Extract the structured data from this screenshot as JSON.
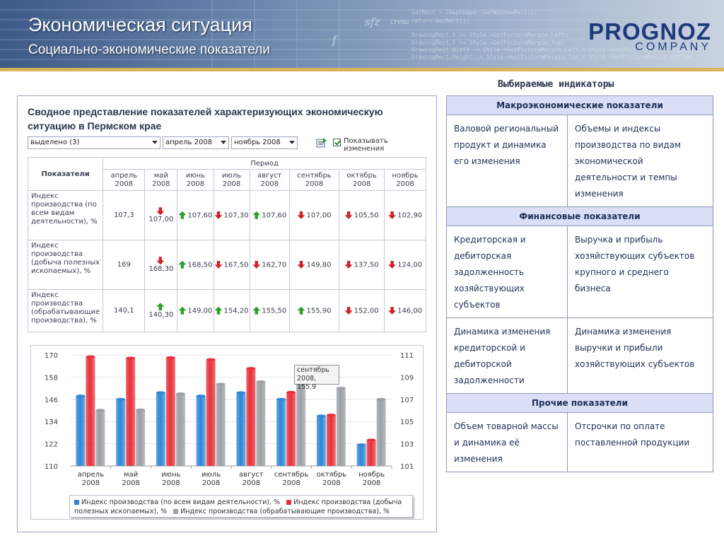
{
  "header": {
    "title": "Экономическая ситуация",
    "subtitle": "Социально-экономические показатели",
    "logo_main": "PROGNOZ",
    "logo_sub": "COMPANY",
    "bg_code": [
      "GetRect = CWapShape::GetWindowRect();",
      "return GetRect();",
      "DrawingRect.X += Style->GetPictureMargin.Left;",
      "DrawingRect.Y += Style->GetPictureMargin.Top;",
      "DrawingRect.Width -= Style->GetPictureMargin.Left + Style->GetPictureMargin.Right;",
      "DrawingRect.Height -= Style->GetPictureMargin.Top + Style->GetPictureMargin.Bottom;"
    ],
    "bg_notes": [
      "sfz",
      "cresc",
      "f"
    ]
  },
  "left": {
    "title": "Сводное представление показателей характеризующих экономическую ситуацию в Пермском крае",
    "filter_selected": "выделено (3)",
    "filter_from": "апрель 2008",
    "filter_to": "ноябрь 2008",
    "show_changes_label": "Показывать изменения",
    "table": {
      "indicator_header": "Показатели",
      "period_header": "Период",
      "months": [
        "апрель 2008",
        "май 2008",
        "июнь 2008",
        "июль 2008",
        "август 2008",
        "сентябрь 2008",
        "октябрь 2008",
        "ноябрь 2008"
      ],
      "rows": [
        {
          "label": "Индекс производства (по всем видам деятельности), %",
          "values": [
            "107,3",
            "107,00",
            "107,60",
            "107,30",
            "107,60",
            "107,00",
            "105,50",
            "102,90"
          ],
          "trend": [
            "",
            "down",
            "up",
            "down",
            "up",
            "down",
            "down",
            "down"
          ]
        },
        {
          "label": "Индекс производства (добыча полезных ископаемых), %",
          "values": [
            "169",
            "168,30",
            "168,50",
            "167,50",
            "162,70",
            "149,80",
            "137,50",
            "124,00"
          ],
          "trend": [
            "",
            "down",
            "up",
            "down",
            "down",
            "down",
            "down",
            "down"
          ]
        },
        {
          "label": "Индекс производства (обрабатывающие производства), %",
          "values": [
            "140,1",
            "140,30",
            "149,00",
            "154,20",
            "155,50",
            "155,90",
            "152,00",
            "146,00"
          ],
          "trend": [
            "",
            "up",
            "up",
            "up",
            "up",
            "up",
            "down",
            "down"
          ]
        }
      ]
    }
  },
  "chart_data": {
    "type": "bar",
    "categories": [
      "апрель 2008",
      "май 2008",
      "июнь 2008",
      "июль 2008",
      "август 2008",
      "сентябрь 2008",
      "октябрь 2008",
      "ноябрь 2008"
    ],
    "series": [
      {
        "name": "Индекс производства (по всем видам деятельности), %",
        "axis": "right",
        "color": "#2f86d6",
        "values": [
          107.3,
          107.0,
          107.6,
          107.3,
          107.6,
          107.0,
          105.5,
          102.9
        ]
      },
      {
        "name": "Индекс производства (добыча полезных ископаемых), %",
        "axis": "left",
        "color": "#e8303a",
        "values": [
          169,
          168.3,
          168.5,
          167.5,
          162.7,
          149.8,
          137.5,
          124.0
        ]
      },
      {
        "name": "Индекс производства (обрабатывающие производства), %",
        "axis": "left",
        "color": "#9aa0a6",
        "values": [
          140.1,
          140.3,
          149.0,
          154.2,
          155.5,
          155.9,
          152.0,
          146.0
        ]
      }
    ],
    "ylim_left": [
      110,
      170
    ],
    "yticks_left": [
      110,
      122,
      134,
      146,
      158,
      170
    ],
    "ylim_right": [
      101,
      111
    ],
    "yticks_right": [
      101,
      103,
      105,
      107,
      109,
      111
    ],
    "grid": true,
    "legend_position": "bottom",
    "tooltip": {
      "line1": "сентябрь",
      "line2": "2008, 155.9"
    }
  },
  "right": {
    "title": "Выбираемые индикаторы",
    "sections": [
      {
        "header": "Макроэкономические показатели",
        "cells": [
          "Валовой региональный продукт и динамика его изменения",
          "Объемы и индексы производства по видам экономической деятельности и темпы изменения"
        ]
      },
      {
        "header": "Финансовые показатели",
        "cells": [
          "Кредиторская и дебиторская задолженность хозяйствующих субъектов",
          "Выручка и прибыль хозяйствующих субъектов крупного и среднего бизнеса",
          "Динамика изменения кредиторской и дебиторской задолженности",
          "Динамика изменения выручки и прибыли хозяйствующих субъектов"
        ]
      },
      {
        "header": "Прочие показатели",
        "cells": [
          "Объем товарной массы и динамика её изменения",
          "Отсрочки по оплате поставленной продукции"
        ]
      }
    ]
  }
}
